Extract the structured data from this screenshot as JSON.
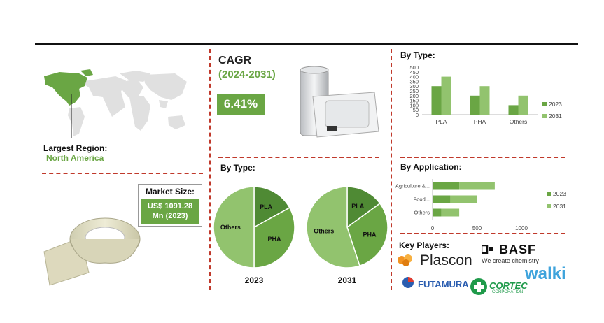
{
  "region": {
    "label": "Largest Region:",
    "value": "North America"
  },
  "market_size": {
    "label": "Market Size:",
    "value_line1": "US$ 1091.28",
    "value_line2": "Mn (2023)"
  },
  "cagr": {
    "title": "CAGR",
    "years": "(2024-2031)",
    "value": "6.41%"
  },
  "pie_section": {
    "title": "By Type:"
  },
  "type_bar": {
    "title": "By Type:"
  },
  "application_bar": {
    "title": "By Application:"
  },
  "key_players": {
    "title": "Key Players:",
    "basf": "BASF",
    "basf_tag": "We create chemistry",
    "plascon": "Plascon",
    "walki": "walki",
    "futamura": "FUTAMURA",
    "cortec": "CORTEC",
    "cortec_sub": "CORPORATION"
  },
  "colors": {
    "dark_green": "#4f8a34",
    "mid_green": "#6aa644",
    "light_green": "#92c36e",
    "divider": "#c0392b"
  },
  "chart_data": [
    {
      "type": "pie",
      "title": "2023",
      "labels": [
        "PLA",
        "PHA",
        "Others"
      ],
      "values": [
        17,
        33,
        50
      ]
    },
    {
      "type": "pie",
      "title": "2031",
      "labels": [
        "PLA",
        "PHA",
        "Others"
      ],
      "values": [
        15,
        30,
        55
      ]
    },
    {
      "type": "bar",
      "categories": [
        "PLA",
        "PHA",
        "Others"
      ],
      "series": [
        {
          "name": "2023",
          "values": [
            300,
            200,
            100
          ]
        },
        {
          "name": "2031",
          "values": [
            400,
            300,
            200
          ]
        }
      ],
      "ylim": [
        0,
        500
      ],
      "yticks": [
        0,
        50,
        100,
        150,
        200,
        250,
        300,
        350,
        400,
        450,
        500
      ],
      "legend": "right"
    },
    {
      "type": "bar",
      "orientation": "horizontal-stacked",
      "categories": [
        "Agriculture &...",
        "Food...",
        "Others"
      ],
      "series": [
        {
          "name": "2023",
          "values": [
            300,
            200,
            100
          ]
        },
        {
          "name": "2031",
          "values": [
            400,
            300,
            200
          ]
        }
      ],
      "xlim": [
        0,
        1000
      ],
      "xticks": [
        0,
        500,
        1000
      ],
      "legend": "right"
    }
  ]
}
